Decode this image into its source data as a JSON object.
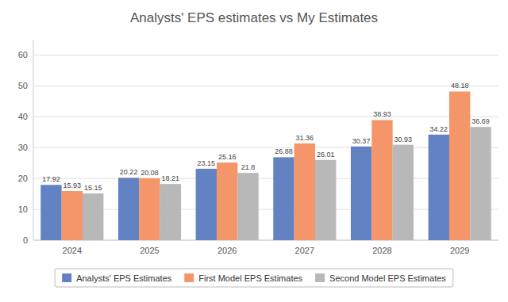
{
  "chart_data": {
    "type": "bar",
    "title": "Analysts' EPS estimates vs My Estimates",
    "categories": [
      "2024",
      "2025",
      "2026",
      "2027",
      "2028",
      "2029"
    ],
    "series": [
      {
        "name": "Analysts' EPS Estimates",
        "color": "#6382c4",
        "values": [
          17.92,
          20.22,
          23.15,
          26.88,
          30.37,
          34.22
        ]
      },
      {
        "name": "First Model EPS Estimates",
        "color": "#f4956a",
        "values": [
          15.93,
          20.08,
          25.16,
          31.36,
          38.93,
          48.18
        ]
      },
      {
        "name": "Second Model EPS Estimates",
        "color": "#b8b8b8",
        "values": [
          15.15,
          18.21,
          21.8,
          26.01,
          30.93,
          36.69
        ]
      }
    ],
    "ylim": [
      0,
      65
    ],
    "yticks": [
      0,
      10,
      20,
      30,
      40,
      50,
      60
    ],
    "grid": true,
    "legend": "bottom",
    "data_labels": true
  }
}
